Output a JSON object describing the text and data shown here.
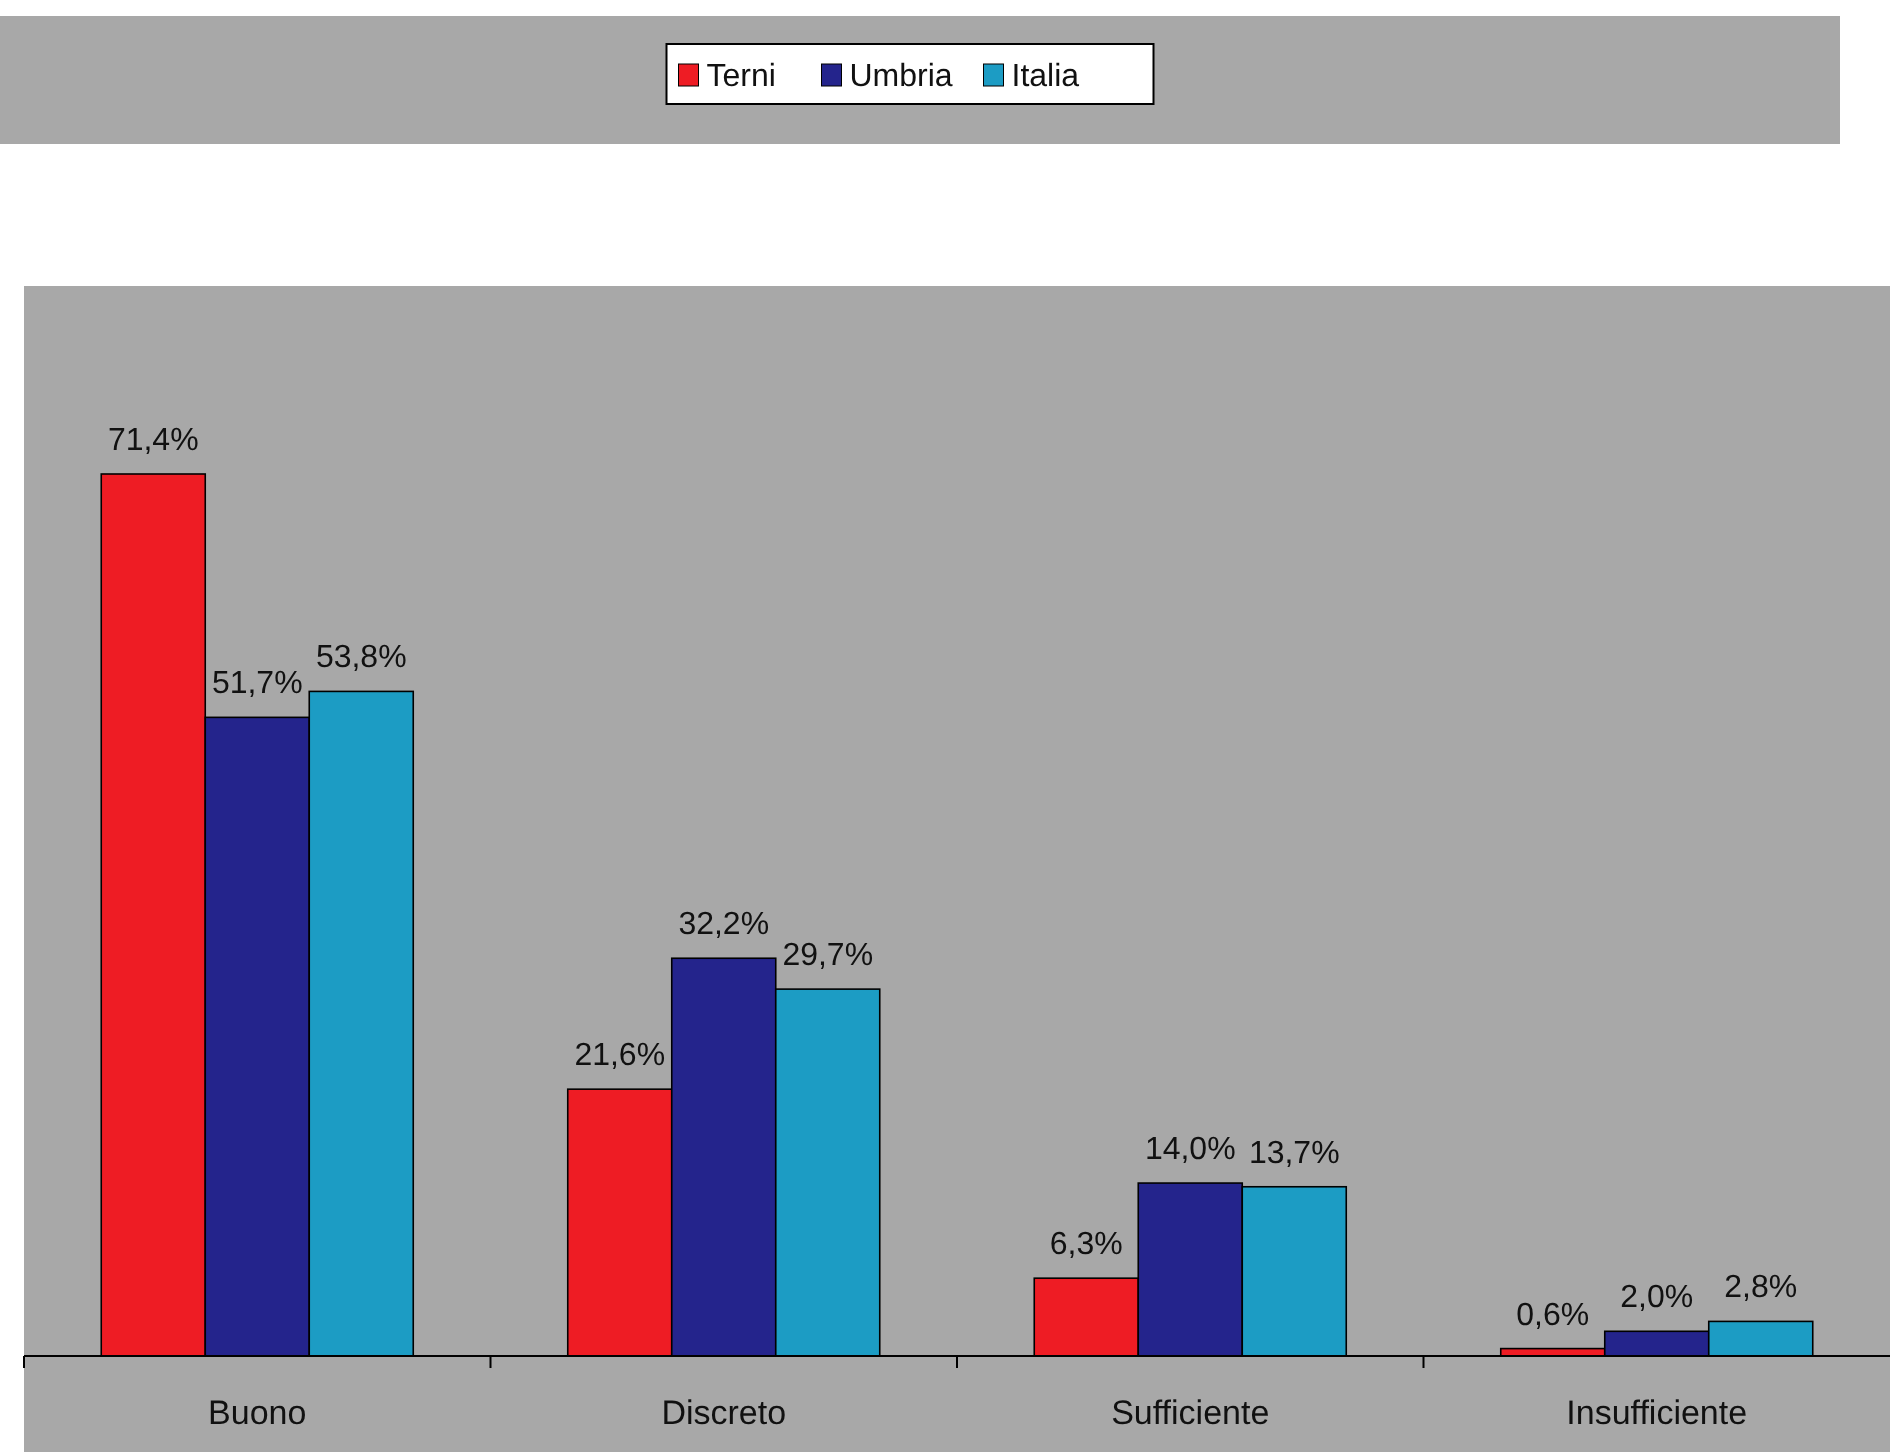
{
  "chart_data": {
    "type": "bar",
    "categories": [
      "Buono",
      "Discreto",
      "Sufficiente",
      "Insufficiente"
    ],
    "series": [
      {
        "name": "Terni",
        "color": "#ee1c24",
        "values": [
          71.4,
          21.6,
          6.3,
          0.6
        ],
        "value_labels": [
          "71,4%",
          "21,6%",
          "6,3%",
          "0,6%"
        ]
      },
      {
        "name": "Umbria",
        "color": "#24248c",
        "values": [
          51.7,
          32.2,
          14.0,
          2.0
        ],
        "value_labels": [
          "51,7%",
          "32,2%",
          "14,0%",
          "2,0%"
        ]
      },
      {
        "name": "Italia",
        "color": "#1c9cc4",
        "values": [
          53.8,
          29.7,
          13.7,
          2.8
        ],
        "value_labels": [
          "53,8%",
          "29,7%",
          "13,7%",
          "2,8%"
        ]
      }
    ],
    "legend": "top"
  }
}
